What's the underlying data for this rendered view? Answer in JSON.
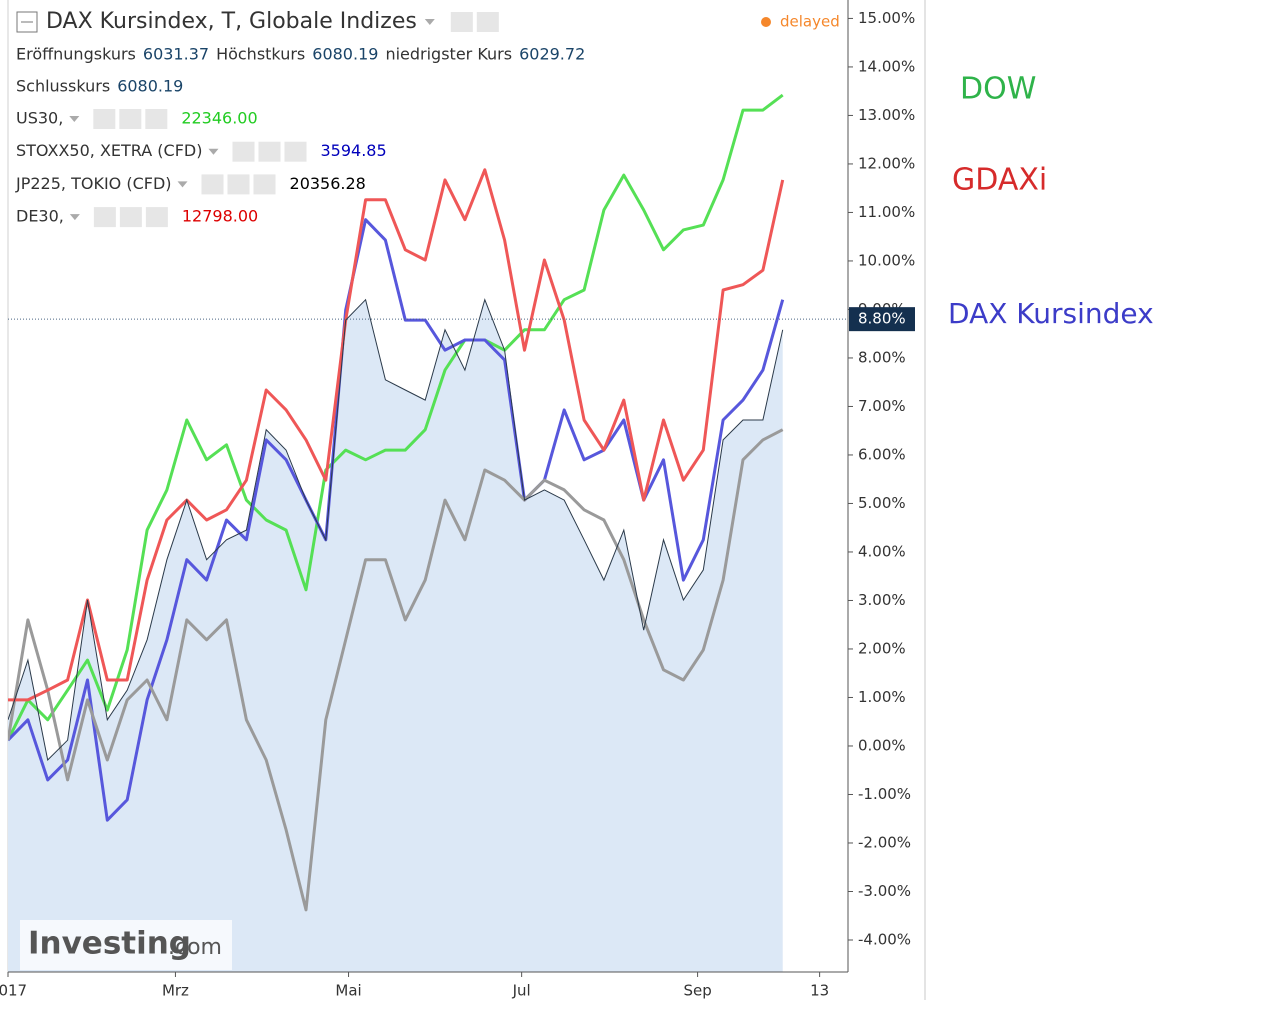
{
  "chart_data": {
    "type": "line",
    "title": "DAX Kursindex, T, Globale Indizes",
    "status": "delayed",
    "ohlc": [
      {
        "label": "Eröffnungskurs",
        "value": "6031.37"
      },
      {
        "label": "Höchstkurs",
        "value": "6080.19"
      },
      {
        "label": "niedrigster Kurs",
        "value": "6029.72"
      },
      {
        "label": "Schlusskurs",
        "value": "6080.19"
      }
    ],
    "x": [
      0,
      7,
      14,
      21,
      28,
      35,
      42,
      49,
      56,
      63,
      70,
      77,
      84,
      91,
      98,
      105,
      112,
      119,
      126,
      133,
      140,
      147,
      154,
      161,
      168,
      175,
      182,
      189,
      196,
      203,
      210,
      217,
      224,
      231,
      238,
      245,
      252,
      259,
      266,
      273
    ],
    "xlim": [
      0,
      296
    ],
    "xticks": [
      {
        "value": 0,
        "label": "2017"
      },
      {
        "value": 59,
        "label": "Mrz"
      },
      {
        "value": 120,
        "label": "Mai"
      },
      {
        "value": 181,
        "label": "Jul"
      },
      {
        "value": 243,
        "label": "Sep"
      },
      {
        "value": 286,
        "label": "13"
      }
    ],
    "ylim": [
      -4.66,
      15.38
    ],
    "yticks": [
      {
        "value": -4,
        "label": "-4.00%"
      },
      {
        "value": -3,
        "label": "-3.00%"
      },
      {
        "value": -2,
        "label": "-2.00%"
      },
      {
        "value": -1,
        "label": "-1.00%"
      },
      {
        "value": 0,
        "label": "0.00%"
      },
      {
        "value": 1,
        "label": "1.00%"
      },
      {
        "value": 2,
        "label": "2.00%"
      },
      {
        "value": 3,
        "label": "3.00%"
      },
      {
        "value": 4,
        "label": "4.00%"
      },
      {
        "value": 5,
        "label": "5.00%"
      },
      {
        "value": 6,
        "label": "6.00%"
      },
      {
        "value": 7,
        "label": "7.00%"
      },
      {
        "value": 8,
        "label": "8.00%"
      },
      {
        "value": 9,
        "label": "9.00%"
      },
      {
        "value": 10,
        "label": "10.00%"
      },
      {
        "value": 11,
        "label": "11.00%"
      },
      {
        "value": 12,
        "label": "12.00%"
      },
      {
        "value": 13,
        "label": "13.00%"
      },
      {
        "value": 14,
        "label": "14.00%"
      },
      {
        "value": 15,
        "label": "15.00%"
      }
    ],
    "grid": false,
    "current_value": {
      "value": 8.8,
      "label": "8.80%"
    },
    "main": {
      "color": "#2b3a4a",
      "fill": "#dce8f6",
      "values": [
        0.54,
        1.77,
        -0.29,
        0.12,
        3.01,
        0.54,
        1.15,
        2.19,
        3.84,
        5.07,
        3.84,
        4.25,
        4.45,
        6.52,
        6.1,
        5.07,
        4.25,
        8.78,
        9.2,
        7.55,
        7.34,
        7.13,
        8.58,
        7.75,
        9.2,
        8.16,
        5.07,
        5.28,
        5.07,
        4.25,
        3.42,
        4.45,
        2.39,
        4.25,
        3.01,
        3.63,
        6.31,
        6.72,
        6.72,
        8.58
      ]
    },
    "series": [
      {
        "name": "US30,",
        "color": "#55e055",
        "last_price": "22346.00",
        "price_color": "#22cc22",
        "values": [
          0.12,
          0.95,
          0.54,
          1.15,
          1.77,
          0.74,
          1.98,
          4.45,
          5.28,
          6.72,
          5.9,
          6.21,
          5.07,
          4.66,
          4.45,
          3.22,
          5.69,
          6.1,
          5.9,
          6.1,
          6.1,
          6.52,
          7.75,
          8.37,
          8.37,
          8.16,
          8.58,
          8.58,
          9.2,
          9.4,
          11.05,
          11.77,
          11.05,
          10.23,
          10.64,
          10.74,
          11.67,
          13.11,
          13.11,
          13.42
        ]
      },
      {
        "name": "STOXX50, XETRA (CFD)",
        "color": "#5757dc",
        "last_price": "3594.85",
        "price_color": "#0000bb",
        "values": [
          0.12,
          0.54,
          -0.7,
          -0.29,
          1.36,
          -1.53,
          -1.11,
          0.95,
          2.19,
          3.84,
          3.42,
          4.66,
          4.25,
          6.31,
          5.9,
          5.07,
          4.25,
          8.99,
          10.85,
          10.43,
          8.78,
          8.78,
          8.16,
          8.37,
          8.37,
          7.96,
          5.07,
          5.48,
          6.93,
          5.9,
          6.1,
          6.72,
          5.07,
          5.9,
          3.42,
          4.25,
          6.72,
          7.13,
          7.75,
          9.2
        ]
      },
      {
        "name": "JP225, TOKIO (CFD)",
        "color": "#9a9a9a",
        "last_price": "20356.28",
        "price_color": "#000000",
        "values": [
          0.12,
          2.6,
          1.15,
          -0.7,
          0.95,
          -0.29,
          0.95,
          1.36,
          0.54,
          2.6,
          2.19,
          2.6,
          0.54,
          -0.29,
          -1.73,
          -3.38,
          0.54,
          2.19,
          3.84,
          3.84,
          2.6,
          3.42,
          5.07,
          4.25,
          5.69,
          5.48,
          5.07,
          5.48,
          5.28,
          4.87,
          4.66,
          3.84,
          2.6,
          1.57,
          1.36,
          1.98,
          3.42,
          5.9,
          6.31,
          6.52
        ]
      },
      {
        "name": "DE30,",
        "color": "#ef5757",
        "last_price": "12798.00",
        "price_color": "#dd0000",
        "values": [
          0.95,
          0.95,
          1.15,
          1.36,
          3.01,
          1.36,
          1.36,
          3.42,
          4.66,
          5.07,
          4.66,
          4.87,
          5.48,
          7.34,
          6.93,
          6.31,
          5.48,
          8.78,
          11.26,
          11.26,
          10.23,
          10.02,
          11.67,
          10.85,
          11.88,
          10.43,
          8.16,
          10.02,
          8.78,
          6.72,
          6.1,
          7.13,
          5.07,
          6.72,
          5.48,
          6.1,
          9.4,
          9.51,
          9.81,
          11.67
        ]
      }
    ],
    "annotations": [
      {
        "text": "DOW",
        "color": "#2fb34a"
      },
      {
        "text": "GDAXi",
        "color": "#d62b2b"
      },
      {
        "text": "DAX Kursindex",
        "color": "#3c3cc8"
      }
    ],
    "logo": {
      "main": "Investing",
      "suffix": ".com"
    }
  }
}
